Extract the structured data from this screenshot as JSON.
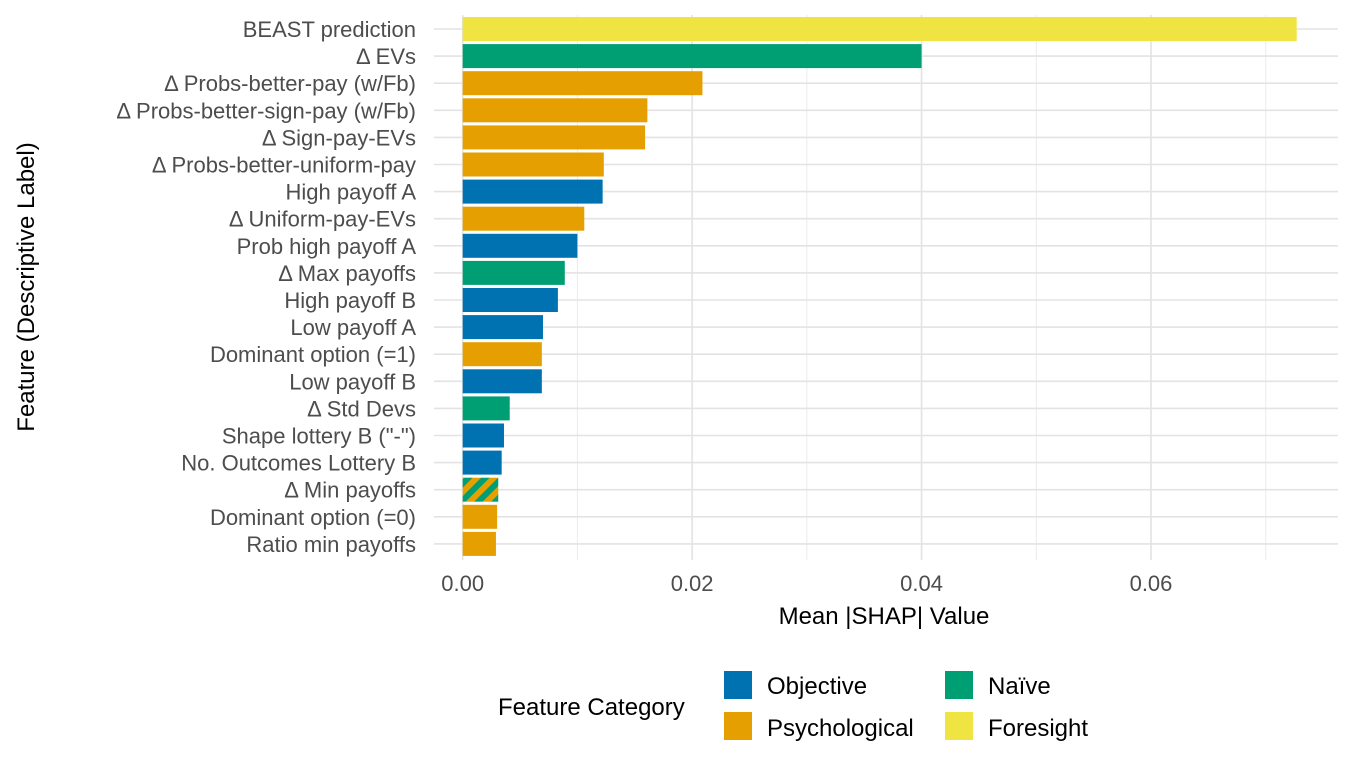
{
  "chart_data": {
    "type": "bar",
    "orientation": "horizontal",
    "title": "",
    "xlabel": "Mean |SHAP| Value",
    "ylabel": "Feature (Descriptive Label)",
    "xlim": [
      -0.0025,
      0.0763
    ],
    "x_ticks": [
      0.0,
      0.02,
      0.04,
      0.06
    ],
    "x_tick_labels": [
      "0.00",
      "0.02",
      "0.04",
      "0.06"
    ],
    "x_minor_ticks": [
      0.01,
      0.03,
      0.05,
      0.07
    ],
    "grid": true,
    "legend_position": "bottom",
    "categories": [
      "BEAST prediction",
      "Δ EVs",
      "Δ Probs-better-pay (w/Fb)",
      "Δ Probs-better-sign-pay (w/Fb)",
      "Δ Sign-pay-EVs",
      "Δ Probs-better-uniform-pay",
      "High payoff A",
      "Δ Uniform-pay-EVs",
      "Prob high payoff A",
      "Δ Max payoffs",
      "High payoff B",
      "Low payoff A",
      "Dominant option (=1)",
      "Low payoff B",
      "Δ Std Devs",
      "Shape lottery B (\"-\")",
      "No. Outcomes Lottery B",
      "Δ Min payoffs",
      "Dominant option (=0)",
      "Ratio min payoffs"
    ],
    "values": [
      0.0727,
      0.04,
      0.0209,
      0.0161,
      0.0159,
      0.0123,
      0.0122,
      0.0106,
      0.01,
      0.0089,
      0.0083,
      0.007,
      0.0069,
      0.0069,
      0.0041,
      0.0036,
      0.0034,
      0.0031,
      0.003,
      0.0029
    ],
    "category_of_bar": [
      "Foresight",
      "Naïve",
      "Psychological",
      "Psychological",
      "Psychological",
      "Psychological",
      "Objective",
      "Psychological",
      "Objective",
      "Naïve",
      "Objective",
      "Objective",
      "Psychological",
      "Objective",
      "Naïve",
      "Objective",
      "Objective",
      "Naïve+Psychological (striped)",
      "Psychological",
      "Psychological"
    ],
    "legend": {
      "title": "Feature Category",
      "entries": [
        {
          "name": "Objective",
          "color": "#0072B2"
        },
        {
          "name": "Naïve",
          "color": "#009E73"
        },
        {
          "name": "Psychological",
          "color": "#E69F00"
        },
        {
          "name": "Foresight",
          "color": "#F0E442"
        }
      ]
    },
    "bar_colors": [
      "#F0E442",
      "#009E73",
      "#E69F00",
      "#E69F00",
      "#E69F00",
      "#E69F00",
      "#0072B2",
      "#E69F00",
      "#0072B2",
      "#009E73",
      "#0072B2",
      "#0072B2",
      "#E69F00",
      "#0072B2",
      "#009E73",
      "#0072B2",
      "#0072B2",
      "striped",
      "#E69F00",
      "#E69F00"
    ],
    "stripe_colors": [
      "#E69F00",
      "#009E73"
    ]
  }
}
